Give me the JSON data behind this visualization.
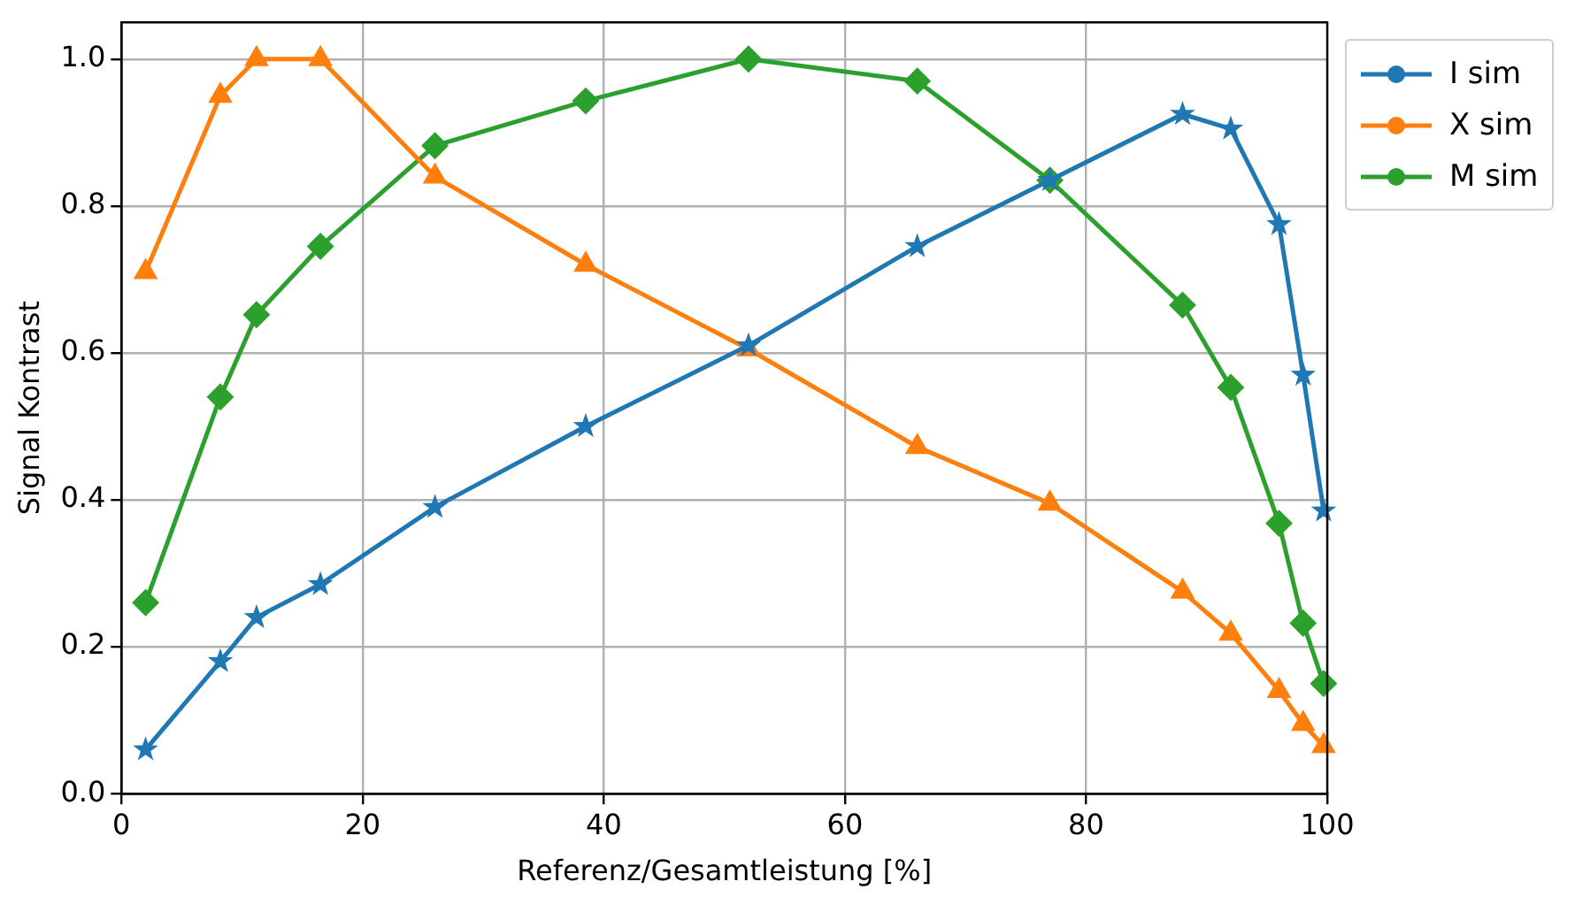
{
  "chart_data": {
    "type": "line",
    "xlabel": "Referenz/Gesamtleistung [%]",
    "ylabel": "Signal Kontrast",
    "x": [
      2,
      8.2,
      11.2,
      16.5,
      26,
      38.5,
      52,
      66,
      77,
      88,
      92,
      96,
      98,
      99.7
    ],
    "series": [
      {
        "name": "I sim",
        "color": "#1f77b4",
        "marker": "star",
        "values": [
          0.06,
          0.18,
          0.24,
          0.285,
          0.39,
          0.5,
          0.61,
          0.745,
          0.835,
          0.925,
          0.905,
          0.775,
          0.57,
          0.385
        ]
      },
      {
        "name": "X sim",
        "color": "#ff7f0e",
        "marker": "triangle",
        "values": [
          0.71,
          0.95,
          1.0,
          1.0,
          0.84,
          0.72,
          0.605,
          0.472,
          0.395,
          0.275,
          0.218,
          0.14,
          0.095,
          0.065
        ]
      },
      {
        "name": "M sim",
        "color": "#2ca02c",
        "marker": "diamond",
        "values": [
          0.26,
          0.54,
          0.652,
          0.745,
          0.882,
          0.943,
          1.0,
          0.97,
          0.835,
          0.665,
          0.553,
          0.368,
          0.232,
          0.15
        ]
      }
    ],
    "xlim": [
      0,
      100
    ],
    "xticks": [
      0,
      20,
      40,
      60,
      80,
      100
    ],
    "ylim": [
      0,
      1.05
    ],
    "yticks": [
      {
        "value": 0,
        "label": "0.0"
      },
      {
        "value": 0.2,
        "label": "0.2"
      },
      {
        "value": 0.4,
        "label": "0.4"
      },
      {
        "value": 0.6,
        "label": "0.6"
      },
      {
        "value": 0.8,
        "label": "0.8"
      },
      {
        "value": 1,
        "label": "1.0"
      }
    ],
    "grid": true,
    "legend": "top right",
    "line_style": "solid"
  }
}
